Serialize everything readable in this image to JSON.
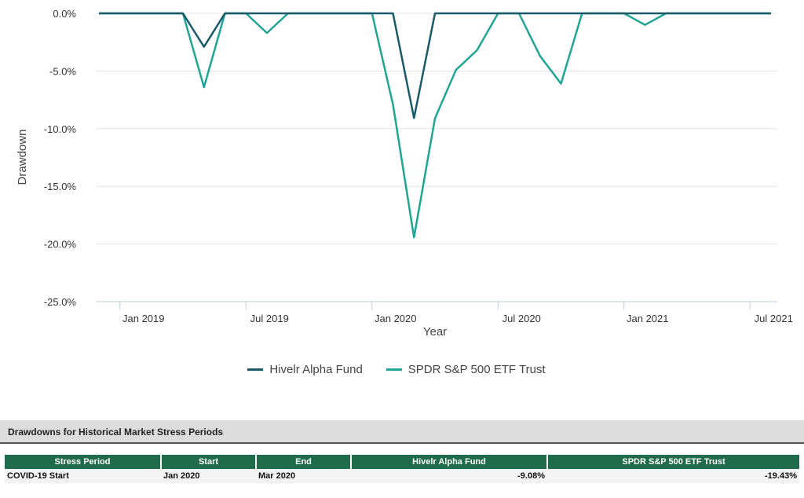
{
  "chart_data": {
    "type": "line",
    "xlabel": "Year",
    "ylabel": "Drawdown",
    "x_ticks": [
      "Jan 2019",
      "Jul 2019",
      "Jan 2020",
      "Jul 2020",
      "Jan 2021",
      "Jul 2021"
    ],
    "y_ticks": [
      "0.0%",
      "-5.0%",
      "-10.0%",
      "-15.0%",
      "-20.0%",
      "-25.0%"
    ],
    "ylim": [
      -25,
      0
    ],
    "x": [
      "2018-12",
      "2019-01",
      "2019-02",
      "2019-03",
      "2019-04",
      "2019-05",
      "2019-06",
      "2019-07",
      "2019-08",
      "2019-09",
      "2019-10",
      "2019-11",
      "2019-12",
      "2020-01",
      "2020-02",
      "2020-03",
      "2020-04",
      "2020-05",
      "2020-06",
      "2020-07",
      "2020-08",
      "2020-09",
      "2020-10",
      "2020-11",
      "2020-12",
      "2021-01",
      "2021-02",
      "2021-03",
      "2021-04",
      "2021-05",
      "2021-06",
      "2021-07",
      "2021-08"
    ],
    "series": [
      {
        "name": "Hivelr Alpha Fund",
        "color": "#1a5a6a",
        "values": [
          0,
          0,
          0,
          0,
          0,
          -2.9,
          0,
          0,
          0,
          0,
          0,
          0,
          0,
          0,
          0,
          -9.08,
          0,
          0,
          0,
          0,
          0,
          0,
          0,
          0,
          0,
          0,
          0,
          0,
          0,
          0,
          0,
          0,
          0
        ]
      },
      {
        "name": "SPDR S&P 500 ETF Trust",
        "color": "#1fa596",
        "values": [
          0,
          0,
          0,
          0,
          0,
          -6.4,
          0,
          0,
          -1.7,
          0,
          0,
          0,
          0,
          0,
          -7.9,
          -19.43,
          -9.1,
          -4.9,
          -3.2,
          0,
          0,
          -3.7,
          -6.1,
          0,
          0,
          0,
          -1.0,
          0,
          0,
          0,
          0,
          0,
          0
        ]
      }
    ],
    "grid": true,
    "legend_position": "bottom"
  },
  "table": {
    "title": "Drawdowns for Historical Market Stress Periods",
    "headers": [
      "Stress Period",
      "Start",
      "End",
      "Hivelr Alpha Fund",
      "SPDR S&P 500 ETF Trust"
    ],
    "rows": [
      [
        "COVID-19 Start",
        "Jan 2020",
        "Mar 2020",
        "-9.08%",
        "-19.43%"
      ]
    ]
  }
}
